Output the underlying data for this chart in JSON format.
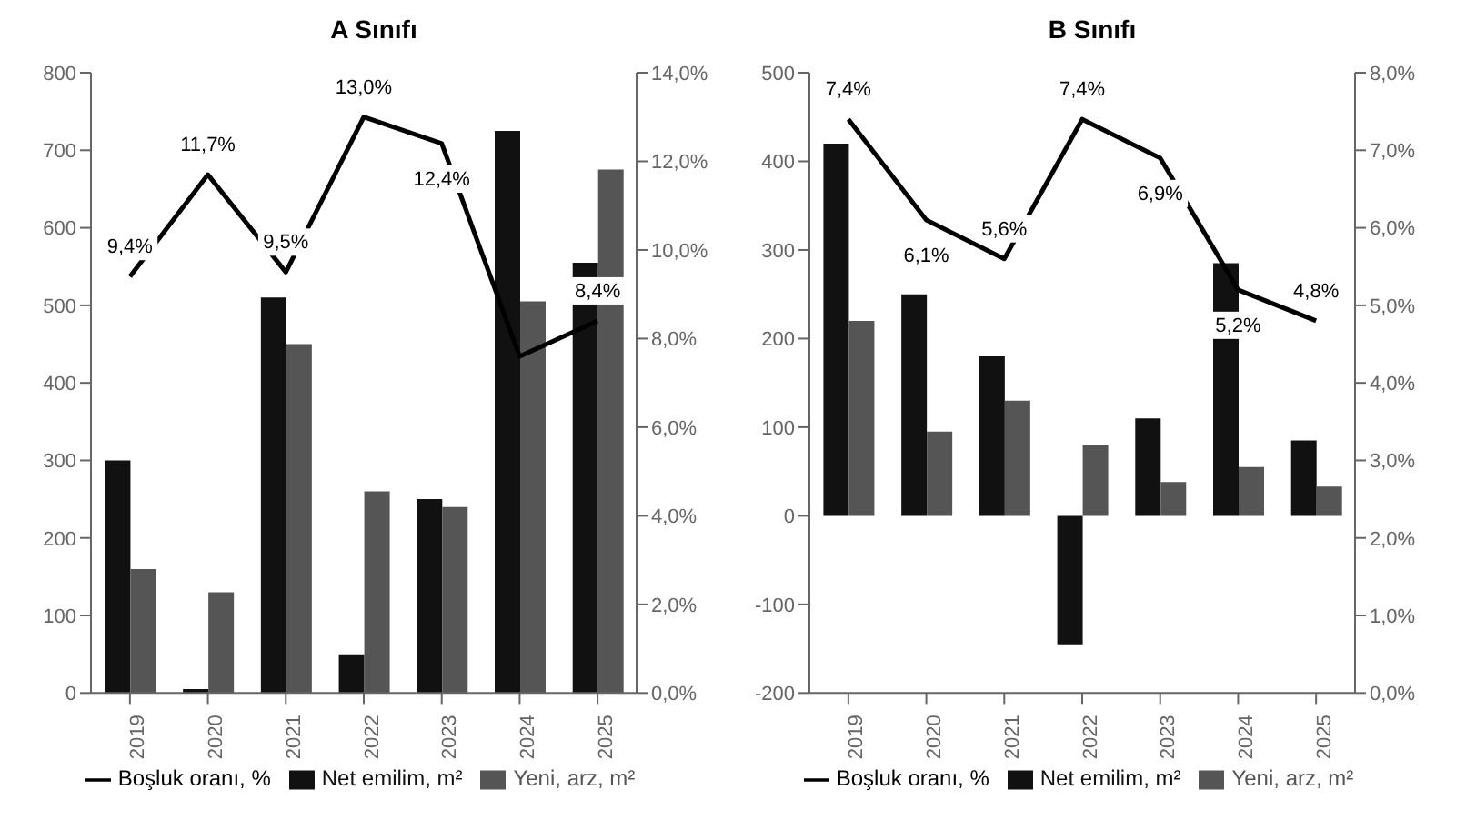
{
  "chart_data": [
    {
      "type": "bar",
      "title": "A Sınıfı",
      "categories": [
        "2019",
        "2020",
        "2021",
        "2022",
        "2023",
        "2024",
        "2025"
      ],
      "series": [
        {
          "name": "Net emilim, m²",
          "color": "#111111",
          "values": [
            300,
            5,
            510,
            50,
            250,
            725,
            555
          ]
        },
        {
          "name": "Yeni, arz, m²",
          "color": "#555555",
          "values": [
            160,
            130,
            450,
            260,
            240,
            505,
            675
          ]
        },
        {
          "name": "Boşluk oranı, %",
          "type": "line",
          "axis": "y2",
          "color": "#000000",
          "values": [
            9.4,
            11.7,
            9.5,
            13.0,
            12.4,
            7.6,
            8.4
          ],
          "value_labels": [
            "9,4%",
            "11,7%",
            "9,5%",
            "13,0%",
            "12,4%",
            null,
            "8,4%"
          ]
        }
      ],
      "ylim": [
        0,
        800
      ],
      "yticks": [
        0,
        100,
        200,
        300,
        400,
        500,
        600,
        700,
        800
      ],
      "y2lim": [
        0,
        14
      ],
      "y2ticks": [
        {
          "value": 0,
          "label": "0,0%"
        },
        {
          "value": 2,
          "label": "2,0%"
        },
        {
          "value": 4,
          "label": "4,0%"
        },
        {
          "value": 6,
          "label": "6,0%"
        },
        {
          "value": 8,
          "label": "8,0%"
        },
        {
          "value": 10,
          "label": "10,0%"
        },
        {
          "value": 12,
          "label": "12,0%"
        },
        {
          "value": 14,
          "label": "14,0%"
        }
      ],
      "legend": "bottom"
    },
    {
      "type": "bar",
      "title": "B Sınıfı",
      "categories": [
        "2019",
        "2020",
        "2021",
        "2022",
        "2023",
        "2024",
        "2025"
      ],
      "series": [
        {
          "name": "Net emilim, m²",
          "color": "#111111",
          "values": [
            420,
            250,
            180,
            -145,
            110,
            285,
            85
          ]
        },
        {
          "name": "Yeni, arz, m²",
          "color": "#555555",
          "values": [
            220,
            95,
            130,
            80,
            38,
            55,
            33
          ]
        },
        {
          "name": "Boşluk oranı, %",
          "type": "line",
          "axis": "y2",
          "color": "#000000",
          "values": [
            7.4,
            6.1,
            5.6,
            7.4,
            6.9,
            5.2,
            4.8
          ],
          "value_labels": [
            "7,4%",
            "6,1%",
            "5,6%",
            "7,4%",
            "6,9%",
            "5,2%",
            "4,8%"
          ]
        }
      ],
      "ylim": [
        -200,
        500
      ],
      "yticks": [
        -200,
        -100,
        0,
        100,
        200,
        300,
        400,
        500
      ],
      "y2lim": [
        0,
        8
      ],
      "y2ticks": [
        {
          "value": 0,
          "label": "0,0%"
        },
        {
          "value": 1,
          "label": "1,0%"
        },
        {
          "value": 2,
          "label": "2,0%"
        },
        {
          "value": 3,
          "label": "3,0%"
        },
        {
          "value": 4,
          "label": "4,0%"
        },
        {
          "value": 5,
          "label": "5,0%"
        },
        {
          "value": 6,
          "label": "6,0%"
        },
        {
          "value": 7,
          "label": "7,0%"
        },
        {
          "value": 8,
          "label": "8,0%"
        }
      ],
      "legend": "bottom"
    }
  ]
}
